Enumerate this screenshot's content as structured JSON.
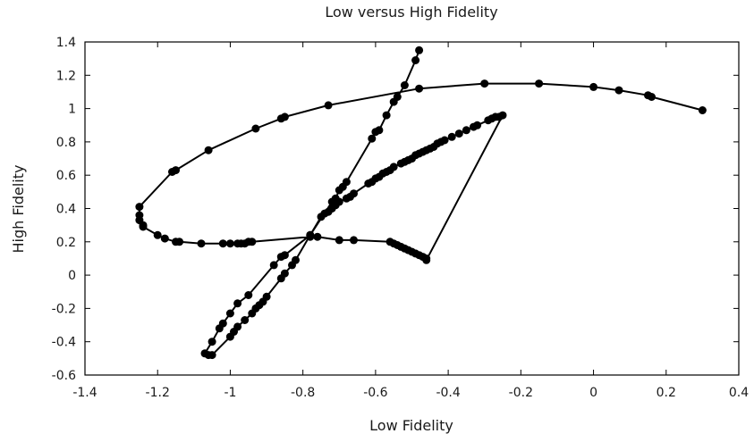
{
  "chart_data": {
    "type": "line",
    "title": "Low versus High Fidelity",
    "xlabel": "Low Fidelity",
    "ylabel": "High Fidelity",
    "xlim": [
      -1.4,
      0.4
    ],
    "ylim": [
      -0.6,
      1.4
    ],
    "xticks": [
      -1.4,
      -1.2,
      -1,
      -0.8,
      -0.6,
      -0.4,
      -0.2,
      0,
      0.2,
      0.4
    ],
    "yticks": [
      -0.6,
      -0.4,
      -0.2,
      0,
      0.2,
      0.4,
      0.6,
      0.8,
      1,
      1.2,
      1.4
    ],
    "xtick_labels": [
      "-1.4",
      "-1.2",
      "-1",
      "-0.8",
      "-0.6",
      "-0.4",
      "-0.2",
      "0",
      "0.2",
      "0.4"
    ],
    "ytick_labels": [
      "-0.6",
      "-0.4",
      "-0.2",
      "0",
      "0.2",
      "0.4",
      "0.6",
      "0.8",
      "1",
      "1.2",
      "1.4"
    ],
    "grid": false,
    "line_color": "#000000",
    "marker": "circle",
    "series": [
      {
        "points": [
          [
            0.3,
            0.99
          ],
          [
            0.16,
            1.07
          ],
          [
            0.15,
            1.08
          ],
          [
            0.07,
            1.11
          ],
          [
            0.0,
            1.13
          ],
          [
            -0.15,
            1.15
          ],
          [
            -0.3,
            1.15
          ],
          [
            -0.48,
            1.12
          ],
          [
            -0.73,
            1.02
          ],
          [
            -0.85,
            0.95
          ],
          [
            -0.86,
            0.94
          ],
          [
            -0.93,
            0.88
          ],
          [
            -1.06,
            0.75
          ],
          [
            -1.15,
            0.63
          ],
          [
            -1.16,
            0.62
          ],
          [
            -1.25,
            0.41
          ],
          [
            -1.25,
            0.36
          ],
          [
            -1.25,
            0.33
          ],
          [
            -1.24,
            0.3
          ],
          [
            -1.24,
            0.29
          ],
          [
            -1.2,
            0.24
          ],
          [
            -1.18,
            0.22
          ],
          [
            -1.15,
            0.2
          ],
          [
            -1.14,
            0.2
          ],
          [
            -1.08,
            0.19
          ],
          [
            -1.02,
            0.19
          ],
          [
            -1.0,
            0.19
          ],
          [
            -0.98,
            0.19
          ],
          [
            -0.97,
            0.19
          ],
          [
            -0.96,
            0.19
          ],
          [
            -0.95,
            0.2
          ],
          [
            -0.94,
            0.2
          ],
          [
            -0.78,
            0.23
          ],
          [
            -0.76,
            0.23
          ],
          [
            -0.7,
            0.21
          ],
          [
            -0.66,
            0.21
          ],
          [
            -0.56,
            0.2
          ],
          [
            -0.55,
            0.19
          ],
          [
            -0.54,
            0.18
          ],
          [
            -0.53,
            0.17
          ],
          [
            -0.52,
            0.16
          ],
          [
            -0.51,
            0.15
          ],
          [
            -0.5,
            0.14
          ],
          [
            -0.49,
            0.13
          ],
          [
            -0.48,
            0.12
          ],
          [
            -0.47,
            0.11
          ],
          [
            -0.46,
            0.1
          ],
          [
            -0.46,
            0.09
          ],
          [
            -0.25,
            0.96
          ],
          [
            -0.26,
            0.95
          ],
          [
            -0.27,
            0.95
          ],
          [
            -0.28,
            0.94
          ],
          [
            -0.29,
            0.93
          ],
          [
            -0.32,
            0.9
          ],
          [
            -0.33,
            0.89
          ],
          [
            -0.35,
            0.87
          ],
          [
            -0.37,
            0.85
          ],
          [
            -0.39,
            0.83
          ],
          [
            -0.41,
            0.81
          ],
          [
            -0.42,
            0.8
          ],
          [
            -0.43,
            0.79
          ],
          [
            -0.44,
            0.77
          ],
          [
            -0.45,
            0.76
          ],
          [
            -0.46,
            0.75
          ],
          [
            -0.47,
            0.74
          ],
          [
            -0.48,
            0.73
          ],
          [
            -0.49,
            0.72
          ],
          [
            -0.5,
            0.7
          ],
          [
            -0.51,
            0.69
          ],
          [
            -0.52,
            0.68
          ],
          [
            -0.53,
            0.67
          ],
          [
            -0.55,
            0.65
          ],
          [
            -0.56,
            0.63
          ],
          [
            -0.57,
            0.62
          ],
          [
            -0.58,
            0.61
          ],
          [
            -0.59,
            0.59
          ],
          [
            -0.6,
            0.58
          ],
          [
            -0.61,
            0.56
          ],
          [
            -0.62,
            0.55
          ],
          [
            -0.66,
            0.49
          ],
          [
            -0.67,
            0.47
          ],
          [
            -0.68,
            0.46
          ],
          [
            -0.7,
            0.44
          ],
          [
            -0.71,
            0.42
          ],
          [
            -0.72,
            0.4
          ],
          [
            -0.73,
            0.38
          ],
          [
            -0.74,
            0.37
          ],
          [
            -0.75,
            0.35
          ],
          [
            -0.78,
            0.24
          ],
          [
            -0.82,
            0.09
          ],
          [
            -0.83,
            0.06
          ],
          [
            -0.85,
            0.01
          ],
          [
            -0.86,
            -0.02
          ],
          [
            -0.9,
            -0.13
          ],
          [
            -0.91,
            -0.16
          ],
          [
            -0.92,
            -0.18
          ],
          [
            -0.93,
            -0.2
          ],
          [
            -0.94,
            -0.23
          ],
          [
            -0.96,
            -0.27
          ],
          [
            -0.98,
            -0.31
          ],
          [
            -0.99,
            -0.34
          ],
          [
            -1.0,
            -0.37
          ],
          [
            -1.05,
            -0.48
          ],
          [
            -1.06,
            -0.48
          ],
          [
            -1.07,
            -0.47
          ],
          [
            -1.05,
            -0.4
          ],
          [
            -1.03,
            -0.32
          ],
          [
            -1.02,
            -0.29
          ],
          [
            -1.0,
            -0.23
          ],
          [
            -0.98,
            -0.17
          ],
          [
            -0.95,
            -0.12
          ],
          [
            -0.88,
            0.06
          ],
          [
            -0.86,
            0.11
          ],
          [
            -0.85,
            0.12
          ],
          [
            -0.78,
            0.24
          ],
          [
            -0.72,
            0.44
          ],
          [
            -0.71,
            0.46
          ],
          [
            -0.7,
            0.51
          ],
          [
            -0.69,
            0.53
          ],
          [
            -0.68,
            0.56
          ],
          [
            -0.61,
            0.82
          ],
          [
            -0.6,
            0.86
          ],
          [
            -0.59,
            0.87
          ],
          [
            -0.57,
            0.96
          ],
          [
            -0.55,
            1.04
          ],
          [
            -0.54,
            1.07
          ],
          [
            -0.52,
            1.14
          ],
          [
            -0.49,
            1.29
          ],
          [
            -0.48,
            1.35
          ]
        ]
      }
    ]
  }
}
